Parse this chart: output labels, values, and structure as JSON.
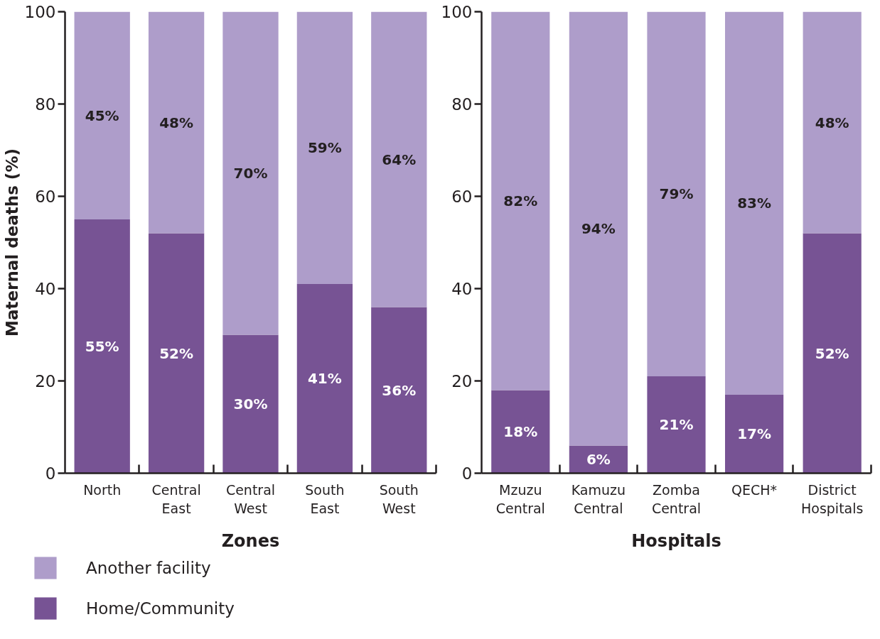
{
  "chart_data": [
    {
      "type": "bar",
      "stacked": true,
      "xlabel": "Zones",
      "ylabel": "Maternal deaths (%)",
      "categories": [
        "North",
        "Central East",
        "Central West",
        "South East",
        "South West"
      ],
      "series": [
        {
          "name": "Home/Community",
          "color": "#775394",
          "values": [
            55,
            52,
            30,
            41,
            36
          ],
          "value_labels": [
            "55%",
            "52%",
            "30%",
            "41%",
            "36%"
          ]
        },
        {
          "name": "Another facility",
          "color": "#ae9dca",
          "values": [
            45,
            48,
            70,
            59,
            64
          ],
          "value_labels": [
            "45%",
            "48%",
            "70%",
            "59%",
            "64%"
          ]
        }
      ],
      "ylim": [
        0,
        100
      ],
      "yticks": [
        0,
        20,
        40,
        60,
        80,
        100
      ],
      "grid": false,
      "legend": "bottom"
    },
    {
      "type": "bar",
      "stacked": true,
      "xlabel": "Hospitals",
      "categories": [
        "Mzuzu Central",
        "Kamuzu Central",
        "Zomba Central",
        "QECH*",
        "District Hospitals"
      ],
      "series": [
        {
          "color": "#775394",
          "values": [
            18,
            6,
            21,
            17,
            52
          ],
          "value_labels": [
            "18%",
            "6%",
            "21%",
            "17%",
            "52%"
          ]
        },
        {
          "color": "#ae9dca",
          "values": [
            82,
            94,
            79,
            83,
            48
          ],
          "value_labels": [
            "82%",
            "94%",
            "79%",
            "83%",
            "48%"
          ]
        }
      ],
      "ylim": [
        0,
        100
      ],
      "yticks": [
        0,
        20,
        40,
        60,
        80,
        100
      ],
      "grid": false
    }
  ]
}
